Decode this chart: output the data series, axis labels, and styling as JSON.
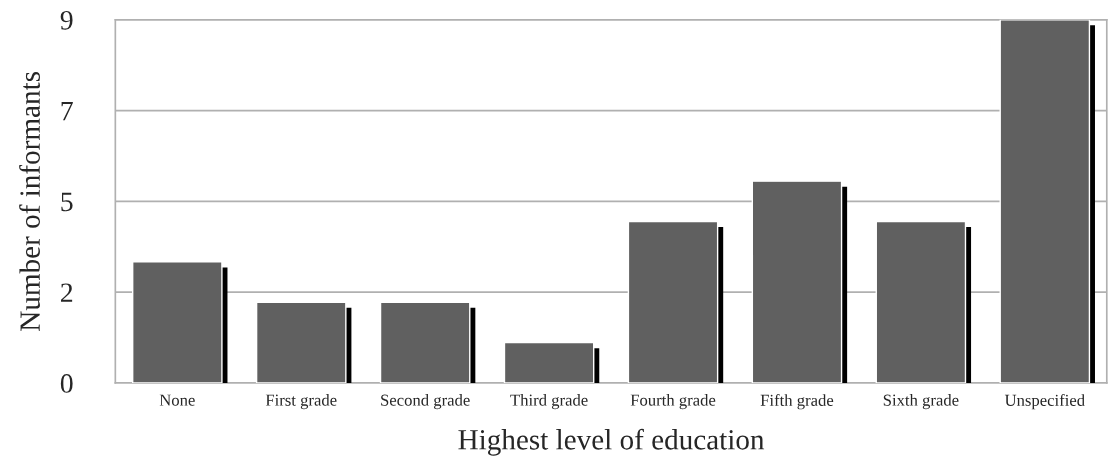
{
  "chart_data": {
    "type": "bar",
    "xlabel": "Highest level of education",
    "ylabel": "Number of informants",
    "categories": [
      "None",
      "First grade",
      "Second grade",
      "Third grade",
      "Fourth grade",
      "Fifth grade",
      "Sixth grade",
      "Unspecified"
    ],
    "values": [
      3,
      2,
      2,
      1,
      4,
      5,
      4,
      9
    ],
    "color": "#606060",
    "ylim": [
      0,
      9
    ],
    "yticks": [
      0,
      {
        "value": 2.25,
        "label": "2"
      },
      {
        "value": 4.5,
        "label": "5"
      },
      {
        "value": 6.75,
        "label": "7"
      },
      9
    ],
    "grid": "y"
  }
}
